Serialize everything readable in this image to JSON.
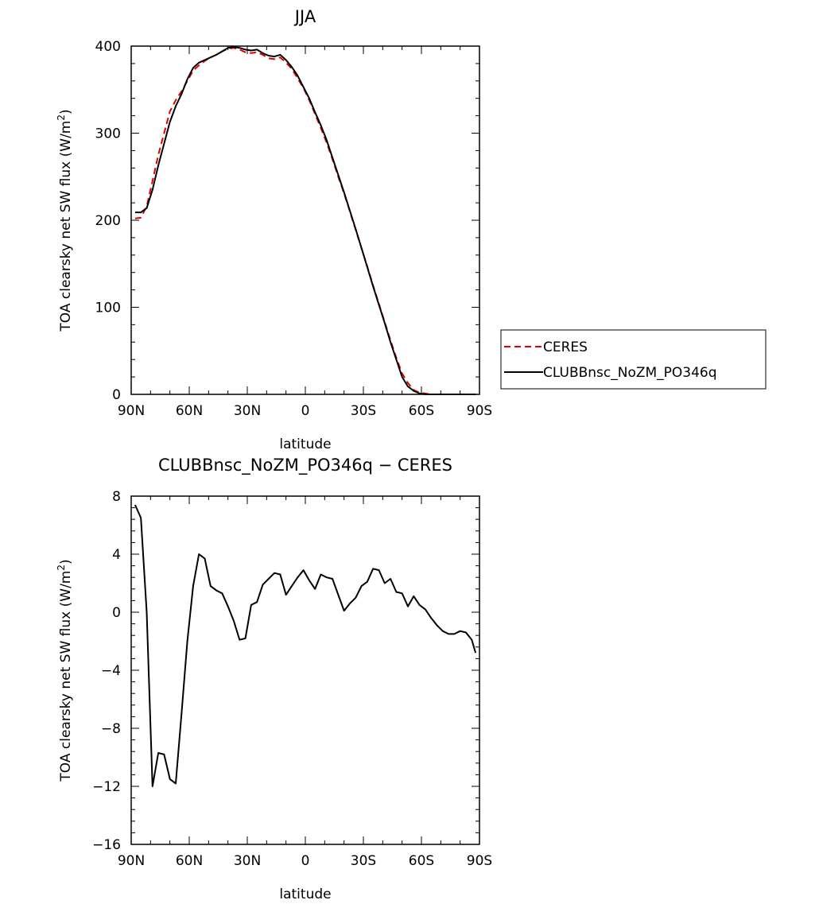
{
  "chart_data": [
    {
      "type": "line",
      "title": "JJA",
      "xlabel": "latitude",
      "ylabel": "TOA clearsky net SW flux (W/m",
      "ylabel_sup": "2",
      "ylabel_close": ")",
      "xlim": [
        -90,
        90
      ],
      "ylim": [
        0,
        400
      ],
      "xticks": [
        -90,
        -60,
        -30,
        0,
        30,
        60,
        90
      ],
      "xtick_labels": [
        "90N",
        "60N",
        "30N",
        "0",
        "30S",
        "60S",
        "90S"
      ],
      "yticks": [
        0,
        100,
        200,
        300,
        400
      ],
      "ytick_labels": [
        "0",
        "100",
        "200",
        "300",
        "400"
      ],
      "grid": false,
      "legend": "right",
      "series": [
        {
          "name": "CERES",
          "color": "#e00000",
          "dash": "dashed",
          "x": [
            -88,
            -85,
            -82,
            -79,
            -76,
            -73,
            -70,
            -67,
            -64,
            -61,
            -58,
            -55,
            -52,
            -49,
            -46,
            -43,
            -40,
            -37,
            -34,
            -31,
            -28,
            -25,
            -22,
            -19,
            -16,
            -13,
            -10,
            -7,
            -4,
            -1,
            2,
            5,
            8,
            11,
            14,
            17,
            20,
            23,
            26,
            29,
            32,
            35,
            38,
            41,
            44,
            47,
            50,
            53,
            56,
            59,
            62,
            65,
            68,
            71,
            74,
            77,
            80,
            83,
            86,
            88
          ],
          "y": [
            202,
            203,
            216,
            245,
            275,
            300,
            325,
            338,
            348,
            360,
            372,
            378,
            383,
            387,
            390,
            394,
            397,
            398,
            396,
            393,
            392,
            393,
            390,
            386,
            385,
            387,
            381,
            374,
            363,
            352,
            338,
            322,
            306,
            289,
            270,
            250,
            231,
            210,
            189,
            168,
            147,
            125,
            104,
            83,
            62,
            42,
            24,
            13,
            5,
            2,
            1,
            0,
            0,
            0,
            0,
            0,
            0,
            0,
            0,
            0
          ]
        },
        {
          "name": "CLUBBnsc_NoZM_PO346q",
          "color": "#000000",
          "dash": "solid",
          "x": [
            -88,
            -85,
            -82,
            -79,
            -76,
            -73,
            -70,
            -67,
            -64,
            -61,
            -58,
            -55,
            -52,
            -49,
            -46,
            -43,
            -40,
            -37,
            -34,
            -31,
            -28,
            -25,
            -22,
            -19,
            -16,
            -13,
            -10,
            -7,
            -4,
            -1,
            2,
            5,
            8,
            11,
            14,
            17,
            20,
            23,
            26,
            29,
            32,
            35,
            38,
            41,
            44,
            47,
            50,
            53,
            56,
            59,
            62,
            65,
            68,
            71,
            74,
            77,
            80,
            83,
            86,
            88
          ],
          "y": [
            209,
            209,
            214,
            235,
            263,
            288,
            313,
            331,
            345,
            362,
            375,
            381,
            384,
            387,
            390,
            394,
            398,
            399,
            398,
            396,
            395,
            396,
            392,
            389,
            388,
            390,
            384,
            376,
            366,
            353,
            340,
            324,
            309,
            292,
            272,
            252,
            232,
            211,
            190,
            168,
            146,
            124,
            103,
            82,
            60,
            40,
            20,
            9,
            4,
            1,
            0,
            0,
            0,
            0,
            0,
            0,
            0,
            0,
            0,
            0
          ]
        }
      ]
    },
    {
      "type": "line",
      "title": "CLUBBnsc_NoZM_PO346q − CERES",
      "xlabel": "latitude",
      "ylabel": "TOA clearsky net SW flux (W/m",
      "ylabel_sup": "2",
      "ylabel_close": ")",
      "xlim": [
        -90,
        90
      ],
      "ylim": [
        -16,
        8
      ],
      "xticks": [
        -90,
        -60,
        -30,
        0,
        30,
        60,
        90
      ],
      "xtick_labels": [
        "90N",
        "60N",
        "30N",
        "0",
        "30S",
        "60S",
        "90S"
      ],
      "yticks": [
        -16,
        -12,
        -8,
        -4,
        0,
        4,
        8
      ],
      "ytick_labels": [
        "−16",
        "−12",
        "−8",
        "−4",
        "0",
        "4",
        "8"
      ],
      "grid": false,
      "series": [
        {
          "color": "#000000",
          "dash": "solid",
          "x": [
            -88,
            -85,
            -82,
            -79,
            -76,
            -73,
            -70,
            -67,
            -64,
            -61,
            -58,
            -55,
            -52,
            -49,
            -46,
            -43,
            -40,
            -37,
            -34,
            -31,
            -28,
            -25,
            -22,
            -19,
            -16,
            -13,
            -10,
            -7,
            -4,
            -1,
            2,
            5,
            8,
            11,
            14,
            17,
            20,
            23,
            26,
            29,
            32,
            35,
            38,
            41,
            44,
            47,
            50,
            53,
            56,
            59,
            62,
            65,
            68,
            71,
            74,
            77,
            80,
            83,
            86,
            88
          ],
          "y": [
            7.4,
            6.5,
            0.0,
            -12.0,
            -9.7,
            -9.8,
            -11.5,
            -11.8,
            -7.0,
            -2.0,
            1.8,
            4.0,
            3.7,
            1.8,
            1.5,
            1.3,
            0.4,
            -0.6,
            -1.9,
            -1.8,
            0.5,
            0.7,
            1.9,
            2.3,
            2.7,
            2.6,
            1.2,
            1.8,
            2.4,
            2.9,
            2.2,
            1.6,
            2.6,
            2.4,
            2.3,
            1.2,
            0.1,
            0.6,
            1.0,
            1.8,
            2.1,
            3.0,
            2.9,
            2.0,
            2.3,
            1.4,
            1.3,
            0.4,
            1.1,
            0.5,
            0.2,
            -0.4,
            -0.9,
            -1.3,
            -1.5,
            -1.5,
            -1.3,
            -1.4,
            -1.9,
            -2.8
          ]
        }
      ]
    }
  ]
}
